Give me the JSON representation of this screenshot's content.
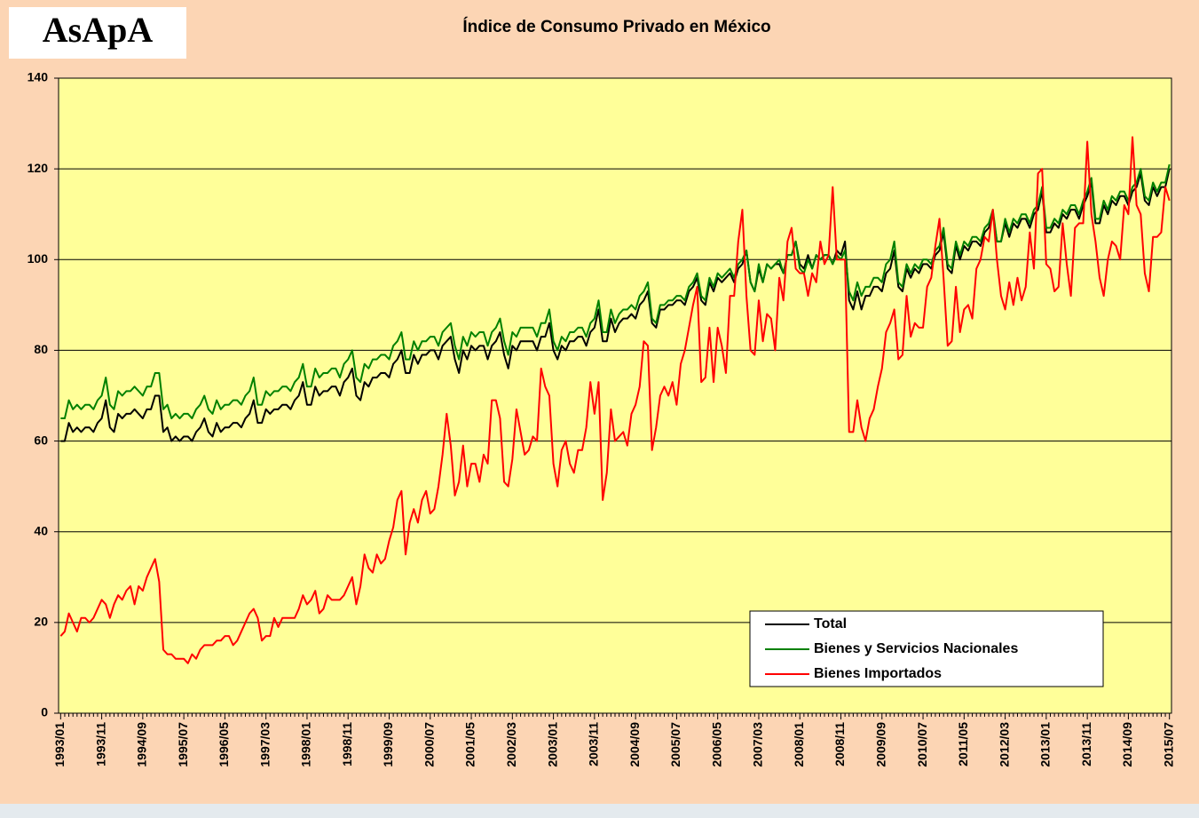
{
  "logo": "AsApA",
  "chart_data": {
    "type": "line",
    "title": "Índice de Consumo Privado en México",
    "categories": [
      "1993/01",
      null,
      null,
      null,
      null,
      null,
      null,
      null,
      null,
      null,
      "1993/11",
      null,
      null,
      null,
      null,
      null,
      null,
      null,
      null,
      null,
      "1994/09",
      null,
      null,
      null,
      null,
      null,
      null,
      null,
      null,
      null,
      "1995/07",
      null,
      null,
      null,
      null,
      null,
      null,
      null,
      null,
      null,
      "1996/05",
      null,
      null,
      null,
      null,
      null,
      null,
      null,
      null,
      null,
      "1997/03",
      null,
      null,
      null,
      null,
      null,
      null,
      null,
      null,
      null,
      "1998/01",
      null,
      null,
      null,
      null,
      null,
      null,
      null,
      null,
      null,
      "1998/11",
      null,
      null,
      null,
      null,
      null,
      null,
      null,
      null,
      null,
      "1999/09",
      null,
      null,
      null,
      null,
      null,
      null,
      null,
      null,
      null,
      "2000/07",
      null,
      null,
      null,
      null,
      null,
      null,
      null,
      null,
      null,
      "2001/05",
      null,
      null,
      null,
      null,
      null,
      null,
      null,
      null,
      null,
      "2002/03",
      null,
      null,
      null,
      null,
      null,
      null,
      null,
      null,
      null,
      "2003/01",
      null,
      null,
      null,
      null,
      null,
      null,
      null,
      null,
      null,
      "2003/11",
      null,
      null,
      null,
      null,
      null,
      null,
      null,
      null,
      null,
      "2004/09",
      null,
      null,
      null,
      null,
      null,
      null,
      null,
      null,
      null,
      "2005/07",
      null,
      null,
      null,
      null,
      null,
      null,
      null,
      null,
      null,
      "2006/05",
      null,
      null,
      null,
      null,
      null,
      null,
      null,
      null,
      null,
      "2007/03",
      null,
      null,
      null,
      null,
      null,
      null,
      null,
      null,
      null,
      "2008/01",
      null,
      null,
      null,
      null,
      null,
      null,
      null,
      null,
      null,
      "2008/11",
      null,
      null,
      null,
      null,
      null,
      null,
      null,
      null,
      null,
      "2009/09",
      null,
      null,
      null,
      null,
      null,
      null,
      null,
      null,
      null,
      "2010/07",
      null,
      null,
      null,
      null,
      null,
      null,
      null,
      null,
      null,
      "2011/05",
      null,
      null,
      null,
      null,
      null,
      null,
      null,
      null,
      null,
      "2012/03",
      null,
      null,
      null,
      null,
      null,
      null,
      null,
      null,
      null,
      "2013/01",
      null,
      null,
      null,
      null,
      null,
      null,
      null,
      null,
      null,
      "2013/11",
      null,
      null,
      null,
      null,
      null,
      null,
      null,
      null,
      null,
      "2014/09",
      null,
      null,
      null,
      null,
      null,
      null,
      null,
      null,
      null,
      "2015/07"
    ],
    "series": [
      {
        "name": "Total",
        "color": "#000000",
        "values": [
          60,
          60,
          64,
          62,
          63,
          62,
          63,
          63,
          62,
          64,
          65,
          69,
          63,
          62,
          66,
          65,
          66,
          66,
          67,
          66,
          65,
          67,
          67,
          70,
          70,
          62,
          63,
          60,
          61,
          60,
          61,
          61,
          60,
          62,
          63,
          65,
          62,
          61,
          64,
          62,
          63,
          63,
          64,
          64,
          63,
          65,
          66,
          69,
          64,
          64,
          67,
          66,
          67,
          67,
          68,
          68,
          67,
          69,
          70,
          73,
          68,
          68,
          72,
          70,
          71,
          71,
          72,
          72,
          70,
          73,
          74,
          76,
          70,
          69,
          73,
          72,
          74,
          74,
          75,
          75,
          74,
          77,
          78,
          80,
          75,
          75,
          79,
          77,
          79,
          79,
          80,
          80,
          78,
          81,
          82,
          83,
          78,
          75,
          80,
          78,
          81,
          80,
          81,
          81,
          78,
          81,
          82,
          84,
          79,
          76,
          81,
          80,
          82,
          82,
          82,
          82,
          80,
          83,
          83,
          86,
          80,
          78,
          81,
          80,
          82,
          82,
          83,
          83,
          81,
          84,
          85,
          89,
          82,
          82,
          87,
          84,
          86,
          87,
          87,
          88,
          87,
          90,
          91,
          93,
          86,
          85,
          89,
          89,
          90,
          90,
          91,
          91,
          90,
          93,
          94,
          96,
          91,
          90,
          95,
          93,
          96,
          95,
          96,
          97,
          95,
          98,
          99,
          102,
          95,
          93,
          98,
          95,
          99,
          98,
          99,
          99,
          97,
          101,
          101,
          104,
          99,
          98,
          101,
          98,
          101,
          100,
          101,
          101,
          99,
          102,
          101,
          104,
          91,
          89,
          93,
          89,
          92,
          92,
          94,
          94,
          93,
          97,
          98,
          102,
          94,
          93,
          98,
          96,
          98,
          97,
          99,
          99,
          98,
          101,
          102,
          106,
          98,
          97,
          103,
          100,
          103,
          102,
          104,
          104,
          103,
          106,
          107,
          110,
          104,
          104,
          108,
          105,
          108,
          107,
          109,
          109,
          107,
          110,
          111,
          115,
          106,
          106,
          108,
          107,
          110,
          109,
          111,
          111,
          109,
          112,
          114,
          117,
          108,
          108,
          112,
          110,
          113,
          112,
          114,
          114,
          112,
          115,
          116,
          119,
          113,
          112,
          116,
          114,
          116,
          116,
          120
        ]
      },
      {
        "name": "Bienes y Servicios Nacionales",
        "color": "#008000",
        "values": [
          65,
          65,
          69,
          67,
          68,
          67,
          68,
          68,
          67,
          69,
          70,
          74,
          68,
          67,
          71,
          70,
          71,
          71,
          72,
          71,
          70,
          72,
          72,
          75,
          75,
          67,
          68,
          65,
          66,
          65,
          66,
          66,
          65,
          67,
          68,
          70,
          67,
          66,
          69,
          67,
          68,
          68,
          69,
          69,
          68,
          70,
          71,
          74,
          68,
          68,
          71,
          70,
          71,
          71,
          72,
          72,
          71,
          73,
          74,
          77,
          72,
          72,
          76,
          74,
          75,
          75,
          76,
          76,
          74,
          77,
          78,
          80,
          74,
          73,
          77,
          76,
          78,
          78,
          79,
          79,
          78,
          81,
          82,
          84,
          78,
          78,
          82,
          80,
          82,
          82,
          83,
          83,
          81,
          84,
          85,
          86,
          81,
          78,
          83,
          81,
          84,
          83,
          84,
          84,
          81,
          84,
          85,
          87,
          82,
          79,
          84,
          83,
          85,
          85,
          85,
          85,
          83,
          86,
          86,
          89,
          82,
          80,
          83,
          82,
          84,
          84,
          85,
          85,
          83,
          86,
          87,
          91,
          84,
          84,
          89,
          86,
          88,
          89,
          89,
          90,
          89,
          92,
          93,
          95,
          87,
          86,
          90,
          90,
          91,
          91,
          92,
          92,
          91,
          94,
          95,
          97,
          92,
          91,
          96,
          94,
          97,
          96,
          97,
          98,
          96,
          99,
          100,
          102,
          95,
          93,
          99,
          95,
          99,
          98,
          99,
          100,
          97,
          101,
          101,
          104,
          98,
          97,
          100,
          98,
          101,
          100,
          101,
          101,
          99,
          101,
          100,
          102,
          93,
          91,
          95,
          92,
          94,
          94,
          96,
          96,
          95,
          99,
          100,
          104,
          95,
          94,
          99,
          97,
          99,
          98,
          100,
          100,
          99,
          102,
          103,
          107,
          99,
          98,
          104,
          101,
          104,
          103,
          105,
          105,
          104,
          107,
          108,
          111,
          104,
          104,
          109,
          106,
          109,
          108,
          110,
          110,
          108,
          111,
          112,
          116,
          107,
          107,
          109,
          108,
          111,
          110,
          112,
          112,
          110,
          113,
          115,
          118,
          109,
          109,
          113,
          111,
          114,
          113,
          115,
          115,
          113,
          116,
          117,
          120,
          114,
          113,
          117,
          115,
          117,
          117,
          121
        ]
      },
      {
        "name": "Bienes Importados",
        "color": "#ff0000",
        "values": [
          17,
          18,
          22,
          20,
          18,
          21,
          21,
          20,
          21,
          23,
          25,
          24,
          21,
          24,
          26,
          25,
          27,
          28,
          24,
          28,
          27,
          30,
          32,
          34,
          29,
          14,
          13,
          13,
          12,
          12,
          12,
          11,
          13,
          12,
          14,
          15,
          15,
          15,
          16,
          16,
          17,
          17,
          15,
          16,
          18,
          20,
          22,
          23,
          21,
          16,
          17,
          17,
          21,
          19,
          21,
          21,
          21,
          21,
          23,
          26,
          24,
          25,
          27,
          22,
          23,
          26,
          25,
          25,
          25,
          26,
          28,
          30,
          24,
          28,
          35,
          32,
          31,
          35,
          33,
          34,
          38,
          41,
          47,
          49,
          35,
          42,
          45,
          42,
          47,
          49,
          44,
          45,
          50,
          57,
          66,
          59,
          48,
          51,
          59,
          50,
          55,
          55,
          51,
          57,
          55,
          69,
          69,
          65,
          51,
          50,
          56,
          67,
          62,
          57,
          58,
          61,
          60,
          76,
          72,
          70,
          55,
          50,
          58,
          60,
          55,
          53,
          58,
          58,
          63,
          73,
          66,
          73,
          47,
          53,
          67,
          60,
          61,
          62,
          59,
          66,
          68,
          72,
          82,
          81,
          58,
          63,
          70,
          72,
          70,
          73,
          68,
          77,
          80,
          85,
          90,
          94,
          73,
          74,
          85,
          73,
          85,
          81,
          75,
          92,
          92,
          104,
          111,
          92,
          80,
          79,
          91,
          82,
          88,
          87,
          80,
          96,
          91,
          104,
          107,
          98,
          97,
          97,
          92,
          97,
          95,
          104,
          99,
          101,
          116,
          100,
          100,
          100,
          62,
          62,
          69,
          63,
          60,
          65,
          67,
          72,
          76,
          84,
          86,
          89,
          78,
          79,
          92,
          83,
          86,
          85,
          85,
          94,
          96,
          103,
          109,
          96,
          81,
          82,
          94,
          84,
          89,
          90,
          87,
          98,
          100,
          105,
          104,
          111,
          100,
          92,
          89,
          95,
          90,
          96,
          91,
          94,
          106,
          98,
          119,
          120,
          99,
          98,
          93,
          94,
          108,
          99,
          92,
          107,
          108,
          108,
          126,
          110,
          104,
          96,
          92,
          100,
          104,
          103,
          100,
          112,
          110,
          127,
          112,
          110,
          97,
          93,
          105,
          105,
          106,
          116,
          113
        ]
      }
    ],
    "ylim": [
      0,
      140
    ],
    "yticks": [
      0,
      20,
      40,
      60,
      80,
      100,
      120,
      140
    ],
    "grid": true,
    "legend": "lower right"
  }
}
